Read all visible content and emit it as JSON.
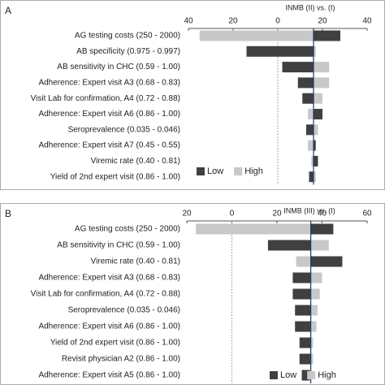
{
  "chart_data": [
    {
      "type": "tornado",
      "panel": "A",
      "title": "INMB (II) vs. (I)",
      "categories": [
        "AG testing costs (250 - 2000)",
        "AB specificity (0.975 - 0.997)",
        "AB sensitivity in CHC (0.59 - 1.00)",
        "Adherence: Expert visit A3 (0.68 - 0.83)",
        "Visit Lab for confirmation, A4 (0.72 - 0.88)",
        "Adherence: Expert visit A6 (0.86 - 1.00)",
        "Seroprevalence (0.035 - 0.046)",
        "Adherence: Expert visit A7 (0.45 - 0.55)",
        "Viremic rate (0.40 - 0.81)",
        "Yield of 2nd expert visit (0.86 - 1.00)"
      ],
      "base_value": 16,
      "series": [
        {
          "name": "Low",
          "color": "#404040",
          "values": [
            28,
            -14,
            2,
            9,
            11,
            20,
            12.7,
            17,
            18,
            14
          ]
        },
        {
          "name": "High",
          "color": "#c8c8c8",
          "values": [
            -35,
            17,
            23,
            23,
            20,
            13.5,
            18,
            13.5,
            15,
            17
          ]
        }
      ],
      "xlim": [
        -40,
        40
      ],
      "xticks": [
        {
          "value": -40,
          "label": "40"
        },
        {
          "value": -20,
          "label": "20"
        },
        0,
        20,
        40
      ]
    },
    {
      "type": "tornado",
      "panel": "B",
      "title": "INMB (III) vs. (I)",
      "categories": [
        "AG testing costs (250 - 2000)",
        "AB sensitivity in CHC (0.59 - 1.00)",
        "Viremic rate (0.40 - 0.81)",
        "Adherence: Expert visit A3 (0.68 - 0.83)",
        "Visit Lab for confirmation, A4 (0.72 - 0.88)",
        "Seroprevalence (0.035 - 0.046)",
        "Adherence: Expert visit A6 (0.86 - 1.00)",
        "Yield of 2nd expert visit (0.86 - 1.00)",
        "Revisit physician A2 (0.86 - 1.00)",
        "Adherence: Expert visit A5 (0.86 - 1.00)"
      ],
      "base_value": 35,
      "series": [
        {
          "name": "Low",
          "color": "#404040",
          "values": [
            45,
            16,
            49,
            27,
            27,
            28,
            28,
            30,
            30,
            31
          ]
        },
        {
          "name": "High",
          "color": "#c8c8c8",
          "values": [
            -16,
            43,
            28.5,
            40,
            39,
            38,
            37.5,
            36,
            36,
            34.5
          ]
        }
      ],
      "xlim": [
        -20,
        60
      ],
      "xticks": [
        {
          "value": -20,
          "label": "20"
        },
        0,
        20,
        40,
        60
      ]
    }
  ]
}
